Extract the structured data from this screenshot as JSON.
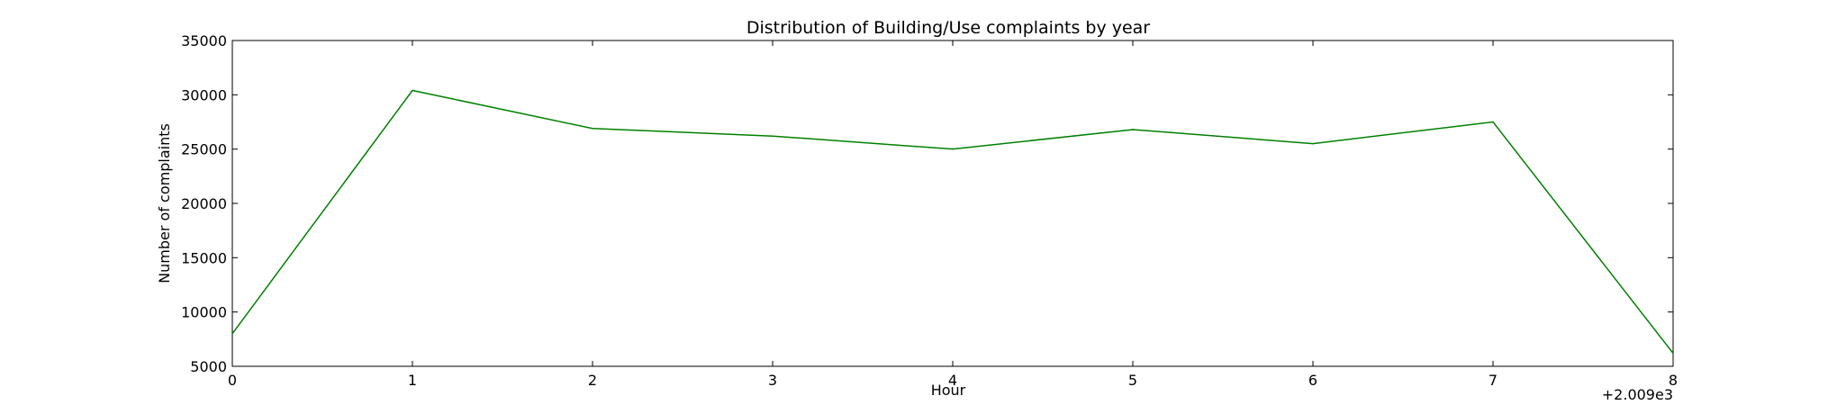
{
  "chart_data": {
    "type": "line",
    "title": "Distribution of  Building/Use complaints by year",
    "xlabel": "Hour",
    "ylabel": "Number of complaints",
    "x_offset_label": "+2.009e3",
    "x_tick_labels": [
      "0",
      "1",
      "2",
      "3",
      "4",
      "5",
      "6",
      "7",
      "8"
    ],
    "y_tick_labels": [
      "5000",
      "10000",
      "15000",
      "20000",
      "25000",
      "30000",
      "35000"
    ],
    "xlim": [
      0,
      8
    ],
    "ylim": [
      5000,
      35000
    ],
    "grid": false,
    "series": [
      {
        "color": "#008000",
        "x": [
          0,
          1,
          2,
          3,
          4,
          5,
          6,
          7,
          8
        ],
        "values": [
          8000,
          30400,
          26900,
          26200,
          25000,
          26800,
          25500,
          27500,
          6200
        ]
      }
    ]
  }
}
